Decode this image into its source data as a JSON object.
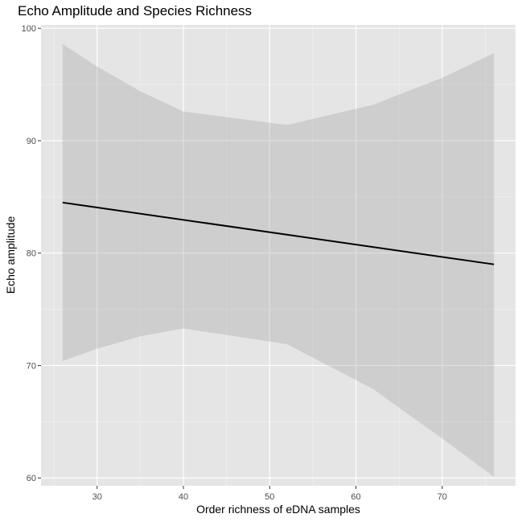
{
  "chart_data": {
    "type": "line",
    "title": "Echo Amplitude and Species Richness",
    "xlabel": "Order richness of eDNA samples",
    "ylabel": "Echo amplitude",
    "xlim": [
      23.5,
      78.5
    ],
    "ylim": [
      59.3,
      100.3
    ],
    "x_ticks": [
      30,
      40,
      50,
      60,
      70
    ],
    "y_ticks": [
      60,
      70,
      80,
      90,
      100
    ],
    "x_tick_labels": [
      "30",
      "40",
      "50",
      "60",
      "70"
    ],
    "y_tick_labels": [
      "60",
      "70",
      "80",
      "90",
      "100"
    ],
    "grid": true,
    "legend": "none",
    "series": [
      {
        "kind": "fit-line",
        "color": "#000000",
        "x": [
          26,
          76
        ],
        "y": [
          84.5,
          79.0
        ]
      }
    ],
    "confidence_band": {
      "color": "#999999",
      "x": [
        26,
        30,
        35,
        40,
        52,
        62,
        70,
        76
      ],
      "upper": [
        98.6,
        96.6,
        94.4,
        92.6,
        91.4,
        93.2,
        95.6,
        97.8
      ],
      "lower": [
        70.4,
        71.5,
        72.6,
        73.3,
        71.9,
        67.9,
        63.5,
        60.1
      ]
    }
  }
}
